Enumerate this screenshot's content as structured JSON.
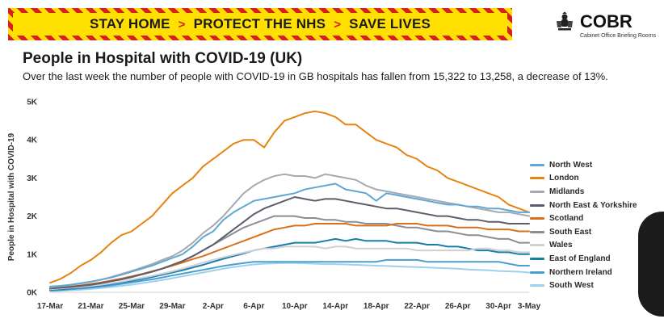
{
  "banner": {
    "phrases": [
      "STAY HOME",
      "PROTECT THE NHS",
      "SAVE LIVES"
    ],
    "separator": ">"
  },
  "logo": {
    "name": "COBR",
    "subtitle": "Cabinet Office Briefing Rooms",
    "icon": "royal-crest-icon"
  },
  "colors": {
    "banner_yellow": "#ffe000",
    "banner_red": "#d62020"
  },
  "chart_data": {
    "type": "line",
    "title": "People in Hospital with COVID-19 (UK)",
    "subtitle": "Over the last week the number of people with COVID-19 in GB hospitals has fallen from 15,322 to 13,258, a decrease of 13%.",
    "xlabel": "",
    "ylabel": "People in Hospital with COVID-19",
    "ylim": [
      0,
      5000
    ],
    "yticks": [
      0,
      1000,
      2000,
      3000,
      4000,
      5000
    ],
    "ytick_labels": [
      "0K",
      "1K",
      "2K",
      "3K",
      "4K",
      "5K"
    ],
    "x": [
      "17-Mar",
      "18-Mar",
      "19-Mar",
      "20-Mar",
      "21-Mar",
      "22-Mar",
      "23-Mar",
      "24-Mar",
      "25-Mar",
      "26-Mar",
      "27-Mar",
      "28-Mar",
      "29-Mar",
      "30-Mar",
      "31-Mar",
      "1-Apr",
      "2-Apr",
      "3-Apr",
      "4-Apr",
      "5-Apr",
      "6-Apr",
      "7-Apr",
      "8-Apr",
      "9-Apr",
      "10-Apr",
      "11-Apr",
      "12-Apr",
      "13-Apr",
      "14-Apr",
      "15-Apr",
      "16-Apr",
      "17-Apr",
      "18-Apr",
      "19-Apr",
      "20-Apr",
      "21-Apr",
      "22-Apr",
      "23-Apr",
      "24-Apr",
      "25-Apr",
      "26-Apr",
      "27-Apr",
      "28-Apr",
      "29-Apr",
      "30-Apr",
      "1-May",
      "2-May",
      "3-May"
    ],
    "xtick_labels": [
      "17-Mar",
      "21-Mar",
      "25-Mar",
      "29-Mar",
      "2-Apr",
      "6-Apr",
      "10-Apr",
      "14-Apr",
      "18-Apr",
      "22-Apr",
      "26-Apr",
      "30-Apr",
      "3-May"
    ],
    "legend_position": "right",
    "grid": false,
    "series": [
      {
        "name": "North West",
        "color": "#5fa8d3",
        "values": [
          150,
          170,
          200,
          240,
          280,
          330,
          390,
          460,
          540,
          620,
          700,
          800,
          900,
          1000,
          1200,
          1450,
          1600,
          1900,
          2100,
          2250,
          2400,
          2450,
          2500,
          2550,
          2600,
          2700,
          2750,
          2800,
          2850,
          2700,
          2650,
          2600,
          2400,
          2600,
          2550,
          2500,
          2450,
          2400,
          2350,
          2300,
          2300,
          2250,
          2250,
          2200,
          2200,
          2150,
          2100,
          2100
        ]
      },
      {
        "name": "London",
        "color": "#e8830f",
        "values": [
          250,
          350,
          500,
          700,
          850,
          1050,
          1300,
          1500,
          1600,
          1800,
          2000,
          2300,
          2600,
          2800,
          3000,
          3300,
          3500,
          3700,
          3900,
          4000,
          4000,
          3800,
          4200,
          4500,
          4600,
          4700,
          4750,
          4700,
          4600,
          4400,
          4400,
          4200,
          4000,
          3900,
          3800,
          3600,
          3500,
          3300,
          3200,
          3000,
          2900,
          2800,
          2700,
          2600,
          2500,
          2300,
          2200,
          2100
        ]
      },
      {
        "name": "Midlands",
        "color": "#a8a8b0",
        "values": [
          130,
          160,
          190,
          230,
          280,
          330,
          400,
          480,
          560,
          650,
          740,
          850,
          950,
          1100,
          1300,
          1550,
          1750,
          2000,
          2300,
          2600,
          2800,
          2950,
          3050,
          3100,
          3050,
          3050,
          3000,
          3100,
          3050,
          3000,
          2950,
          2800,
          2700,
          2650,
          2600,
          2550,
          2500,
          2450,
          2400,
          2350,
          2300,
          2250,
          2200,
          2150,
          2100,
          2100,
          2050,
          2000
        ]
      },
      {
        "name": "North East & Yorkshire",
        "color": "#5d5d6b",
        "values": [
          100,
          120,
          140,
          170,
          200,
          240,
          290,
          340,
          400,
          470,
          540,
          620,
          720,
          820,
          950,
          1100,
          1250,
          1450,
          1650,
          1850,
          2050,
          2200,
          2300,
          2400,
          2500,
          2450,
          2400,
          2450,
          2450,
          2400,
          2350,
          2300,
          2250,
          2200,
          2200,
          2150,
          2100,
          2050,
          2000,
          2000,
          1950,
          1900,
          1900,
          1850,
          1850,
          1800,
          1800,
          1800
        ]
      },
      {
        "name": "Scotland",
        "color": "#d9701c",
        "values": [
          100,
          120,
          150,
          180,
          220,
          260,
          310,
          360,
          420,
          480,
          550,
          620,
          700,
          780,
          870,
          950,
          1050,
          1150,
          1250,
          1350,
          1450,
          1550,
          1650,
          1700,
          1750,
          1750,
          1800,
          1800,
          1800,
          1800,
          1750,
          1750,
          1750,
          1750,
          1800,
          1800,
          1800,
          1750,
          1750,
          1750,
          1700,
          1700,
          1700,
          1650,
          1650,
          1650,
          1600,
          1600
        ]
      },
      {
        "name": "South East",
        "color": "#8c8c96",
        "values": [
          100,
          120,
          140,
          170,
          200,
          240,
          290,
          340,
          400,
          470,
          540,
          620,
          720,
          820,
          950,
          1100,
          1250,
          1400,
          1550,
          1700,
          1800,
          1900,
          2000,
          2000,
          2000,
          1950,
          1950,
          1900,
          1900,
          1850,
          1850,
          1800,
          1800,
          1800,
          1750,
          1700,
          1700,
          1650,
          1600,
          1600,
          1550,
          1500,
          1500,
          1450,
          1400,
          1400,
          1300,
          1300
        ]
      },
      {
        "name": "Wales",
        "color": "#cfcfd6",
        "values": [
          80,
          100,
          120,
          140,
          170,
          200,
          240,
          280,
          330,
          380,
          430,
          490,
          550,
          620,
          700,
          780,
          850,
          920,
          980,
          1040,
          1100,
          1150,
          1150,
          1200,
          1200,
          1200,
          1200,
          1150,
          1200,
          1200,
          1150,
          1150,
          1150,
          1150,
          1150,
          1150,
          1100,
          1100,
          1100,
          1100,
          1100,
          1100,
          1150,
          1150,
          1100,
          1100,
          1050,
          1050
        ]
      },
      {
        "name": "East of England",
        "color": "#1a7fa8",
        "values": [
          60,
          80,
          100,
          120,
          150,
          180,
          220,
          260,
          300,
          350,
          400,
          460,
          520,
          580,
          650,
          720,
          800,
          880,
          950,
          1020,
          1100,
          1150,
          1200,
          1250,
          1300,
          1300,
          1300,
          1350,
          1400,
          1350,
          1400,
          1350,
          1350,
          1350,
          1300,
          1300,
          1300,
          1250,
          1250,
          1200,
          1200,
          1150,
          1100,
          1100,
          1050,
          1050,
          1000,
          1000
        ]
      },
      {
        "name": "Northern Ireland",
        "color": "#4a9fd0",
        "values": [
          50,
          60,
          80,
          100,
          120,
          150,
          180,
          220,
          260,
          300,
          340,
          390,
          440,
          490,
          540,
          590,
          640,
          690,
          730,
          770,
          800,
          800,
          800,
          800,
          800,
          800,
          800,
          800,
          800,
          800,
          800,
          800,
          800,
          850,
          850,
          850,
          850,
          800,
          800,
          800,
          800,
          800,
          800,
          800,
          800,
          750,
          700,
          700
        ]
      },
      {
        "name": "South West",
        "color": "#9fd1ef",
        "values": [
          30,
          40,
          55,
          70,
          90,
          110,
          140,
          170,
          200,
          240,
          280,
          320,
          370,
          420,
          470,
          520,
          570,
          620,
          660,
          700,
          730,
          750,
          760,
          770,
          770,
          760,
          750,
          740,
          740,
          730,
          720,
          710,
          700,
          690,
          680,
          670,
          660,
          650,
          640,
          630,
          620,
          600,
          590,
          580,
          560,
          550,
          540,
          520
        ]
      }
    ]
  }
}
